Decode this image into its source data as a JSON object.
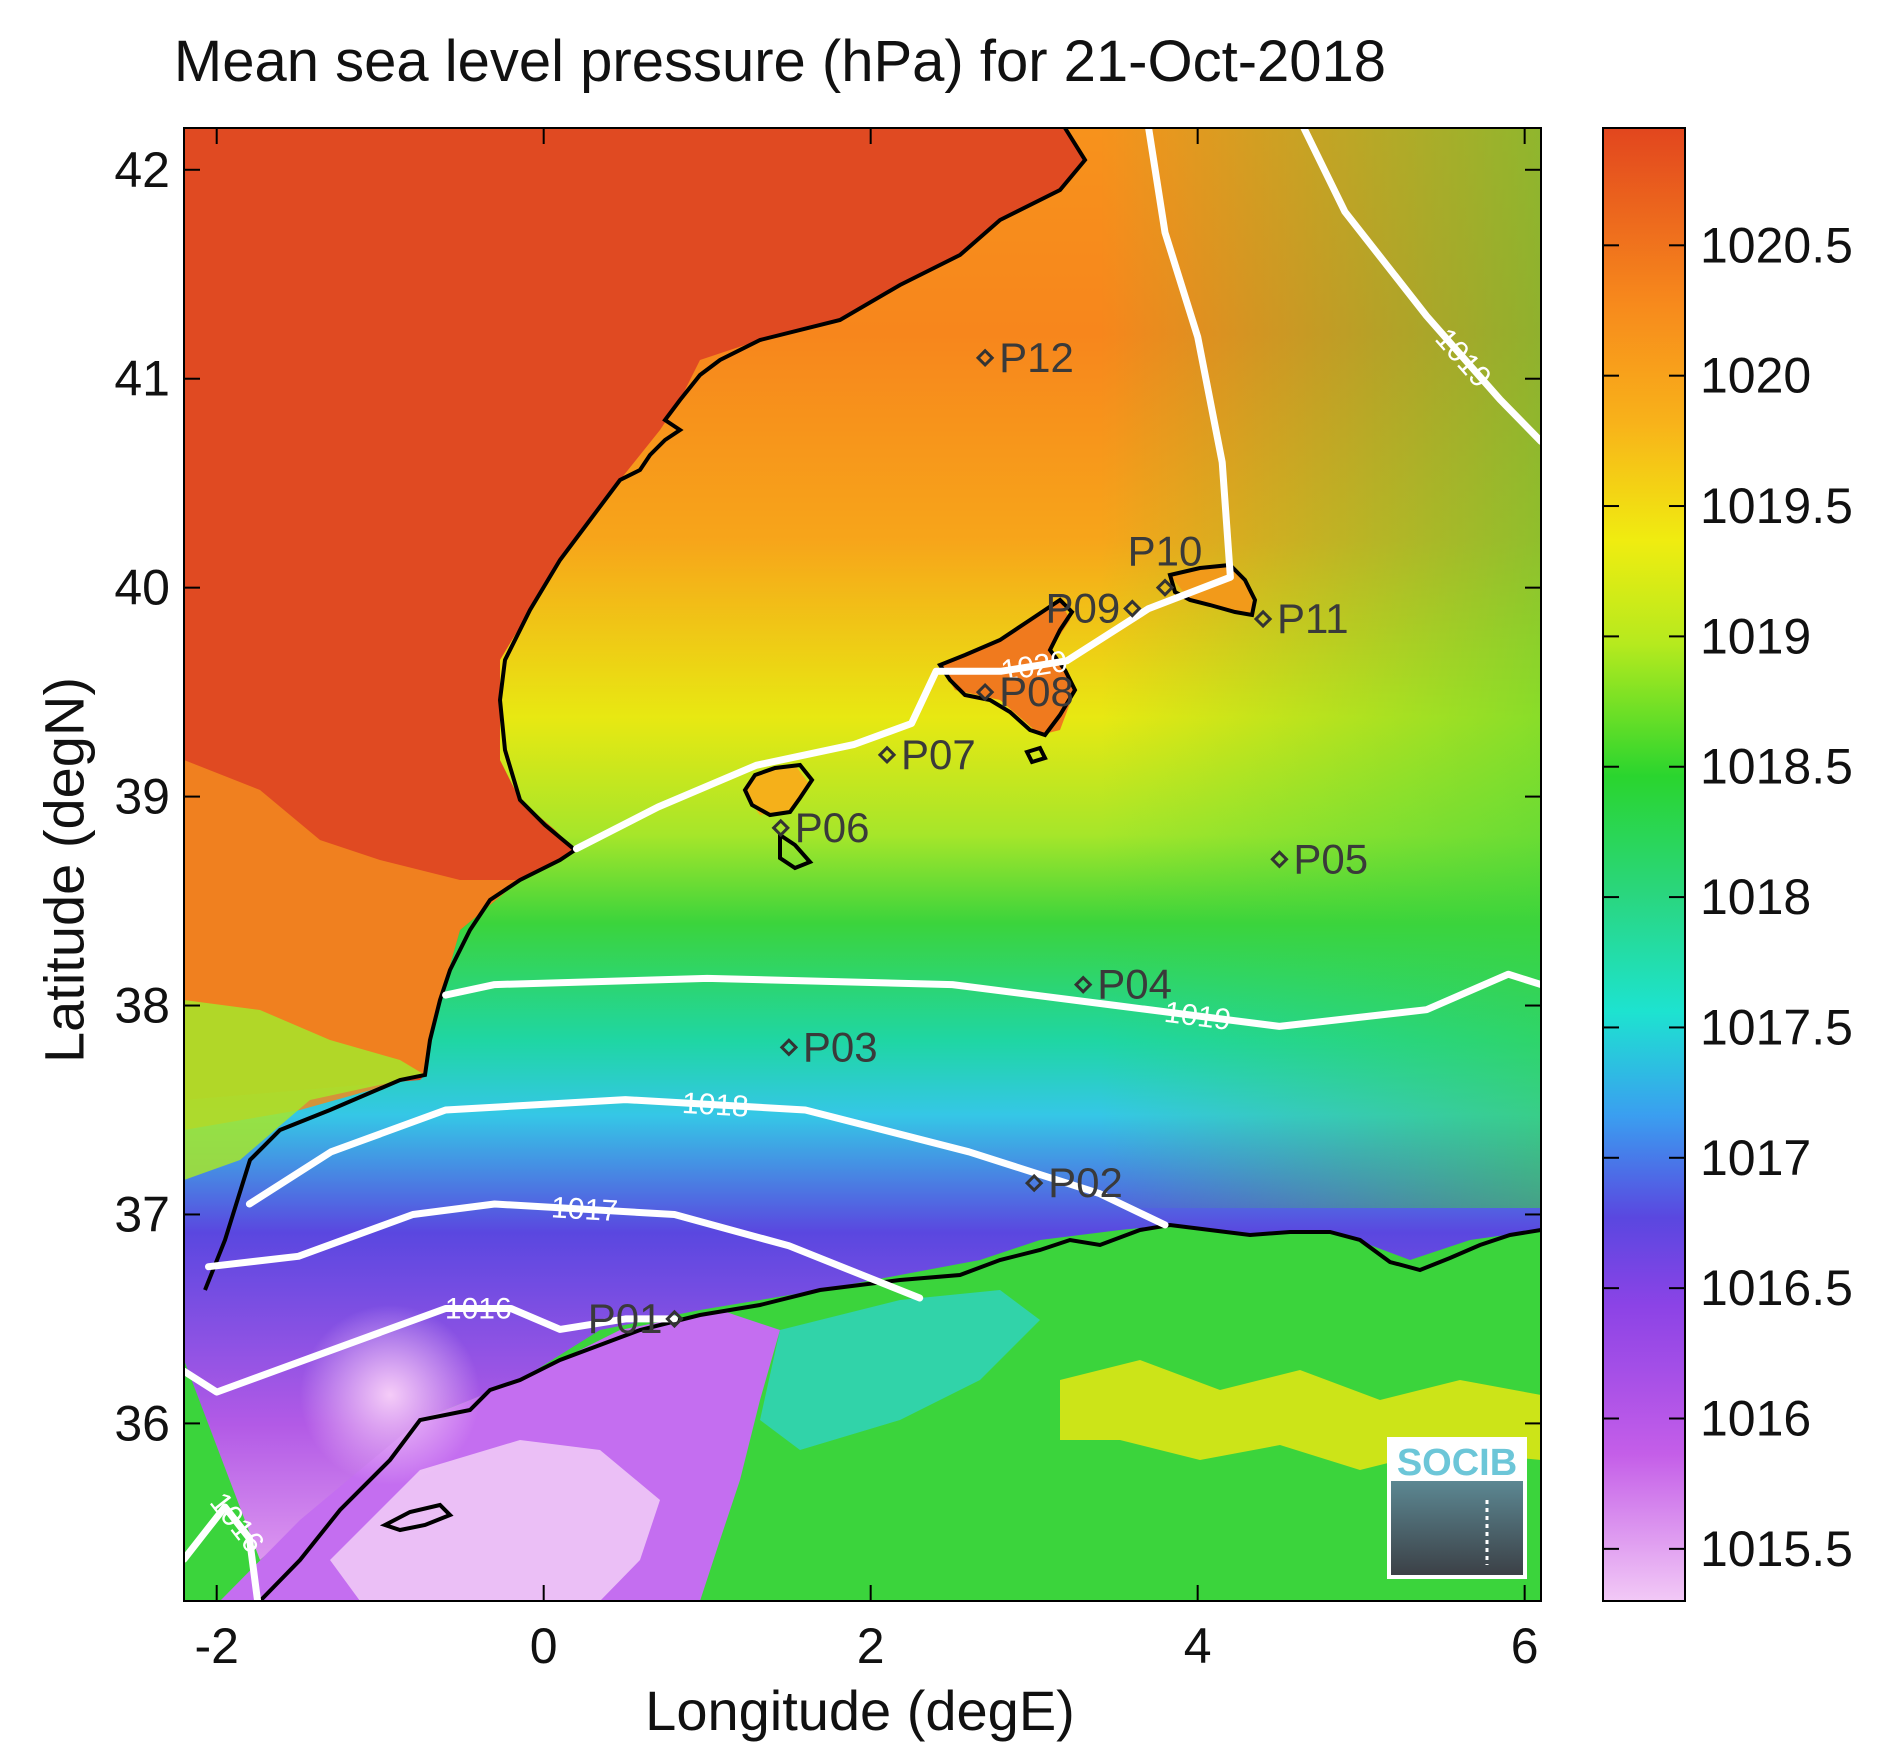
{
  "chart_data": {
    "type": "heatmap",
    "title": "Mean sea level pressure (hPa) for 21-Oct-2018",
    "xlabel": "Longitude (degE)",
    "ylabel": "Latitude (degN)",
    "xlim": [
      -2.2,
      6.1
    ],
    "ylim": [
      35.15,
      42.2
    ],
    "xticks": [
      -2,
      0,
      2,
      4,
      6
    ],
    "yticks": [
      36,
      37,
      38,
      39,
      40,
      41,
      42
    ],
    "colorbar": {
      "range": [
        1015.3,
        1020.95
      ],
      "ticks": [
        1015.5,
        1016,
        1016.5,
        1017,
        1017.5,
        1018,
        1018.5,
        1019,
        1019.5,
        1020,
        1020.5
      ],
      "tick_labels": [
        "1015.5",
        "1016",
        "1016.5",
        "1017",
        "1017.5",
        "1018",
        "1018.5",
        "1019",
        "1019.5",
        "1020",
        "1020.5"
      ]
    },
    "contours": [
      {
        "level": 1020,
        "label": "1020",
        "points": [
          [
            0.2,
            38.75
          ],
          [
            0.7,
            38.95
          ],
          [
            1.3,
            39.15
          ],
          [
            1.9,
            39.25
          ],
          [
            2.25,
            39.35
          ],
          [
            2.4,
            39.6
          ],
          [
            2.8,
            39.6
          ],
          [
            3.2,
            39.65
          ],
          [
            3.7,
            39.9
          ],
          [
            4.2,
            40.05
          ],
          [
            4.15,
            40.6
          ],
          [
            4.0,
            41.2
          ],
          [
            3.8,
            41.7
          ],
          [
            3.7,
            42.2
          ]
        ]
      },
      {
        "level": 1019,
        "label": "1019",
        "points": [
          [
            4.65,
            42.2
          ],
          [
            4.9,
            41.8
          ],
          [
            5.4,
            41.3
          ],
          [
            5.85,
            40.9
          ],
          [
            6.1,
            40.7
          ]
        ]
      },
      {
        "level": 1019,
        "label": "1019",
        "points": [
          [
            -0.6,
            38.05
          ],
          [
            -0.3,
            38.1
          ],
          [
            1.0,
            38.13
          ],
          [
            2.5,
            38.1
          ],
          [
            3.5,
            38.0
          ],
          [
            4.5,
            37.9
          ],
          [
            5.4,
            37.98
          ],
          [
            5.9,
            38.15
          ],
          [
            6.1,
            38.1
          ]
        ]
      },
      {
        "level": 1018,
        "label": "1018",
        "points": [
          [
            -1.8,
            37.05
          ],
          [
            -1.3,
            37.3
          ],
          [
            -0.6,
            37.5
          ],
          [
            0.5,
            37.55
          ],
          [
            1.6,
            37.5
          ],
          [
            2.6,
            37.3
          ],
          [
            3.4,
            37.1
          ],
          [
            3.8,
            36.95
          ]
        ]
      },
      {
        "level": 1017,
        "label": "1017",
        "points": [
          [
            -2.05,
            36.75
          ],
          [
            -1.5,
            36.8
          ],
          [
            -0.8,
            37.0
          ],
          [
            -0.3,
            37.05
          ],
          [
            0.8,
            37.0
          ],
          [
            1.5,
            36.85
          ],
          [
            2.3,
            36.6
          ]
        ]
      },
      {
        "level": 1016,
        "label": "1016",
        "points": [
          [
            -2.2,
            36.25
          ],
          [
            -2.0,
            36.15
          ],
          [
            -1.3,
            36.35
          ],
          [
            -0.6,
            36.55
          ],
          [
            -0.2,
            36.55
          ],
          [
            0.1,
            36.45
          ],
          [
            0.5,
            36.5
          ],
          [
            0.8,
            36.5
          ]
        ]
      },
      {
        "level": 1016,
        "label": "1016",
        "points": [
          [
            -2.2,
            35.35
          ],
          [
            -2.05,
            35.5
          ],
          [
            -1.95,
            35.6
          ],
          [
            -1.8,
            35.45
          ],
          [
            -1.75,
            35.15
          ]
        ]
      }
    ],
    "stations": [
      {
        "name": "P01",
        "lon": 0.8,
        "lat": 36.5,
        "label_side": "left"
      },
      {
        "name": "P02",
        "lon": 3.0,
        "lat": 37.15,
        "label_side": "right"
      },
      {
        "name": "P03",
        "lon": 1.5,
        "lat": 37.8,
        "label_side": "right"
      },
      {
        "name": "P04",
        "lon": 3.3,
        "lat": 38.1,
        "label_side": "right"
      },
      {
        "name": "P05",
        "lon": 4.5,
        "lat": 38.7,
        "label_side": "right"
      },
      {
        "name": "P06",
        "lon": 1.45,
        "lat": 38.85,
        "label_side": "right"
      },
      {
        "name": "P07",
        "lon": 2.1,
        "lat": 39.2,
        "label_side": "right"
      },
      {
        "name": "P08",
        "lon": 2.7,
        "lat": 39.5,
        "label_side": "right"
      },
      {
        "name": "P09",
        "lon": 3.6,
        "lat": 39.9,
        "label_side": "left"
      },
      {
        "name": "P10",
        "lon": 3.8,
        "lat": 40.0,
        "label_side": "above"
      },
      {
        "name": "P11",
        "lon": 4.4,
        "lat": 39.85,
        "label_side": "right"
      },
      {
        "name": "P12",
        "lon": 2.7,
        "lat": 41.1,
        "label_side": "right"
      }
    ]
  },
  "logo": {
    "text": "SOCIB"
  }
}
